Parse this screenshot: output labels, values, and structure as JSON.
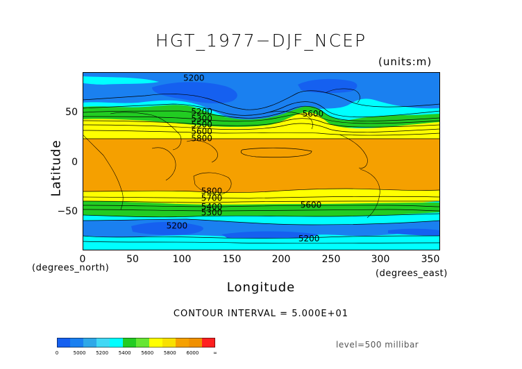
{
  "title": "HGT_1977−DJF_NCEP",
  "units": "(units:m)",
  "axes": {
    "ylabel": "Latitude",
    "xlabel": "Longitude",
    "y_ticks": [
      "50",
      "0",
      "−50"
    ],
    "x_ticks": [
      "0",
      "50",
      "100",
      "150",
      "200",
      "250",
      "300",
      "350"
    ],
    "x_unit": "(degrees_east)",
    "y_unit": "(degrees_north)"
  },
  "contour_interval": "CONTOUR INTERVAL = 5.000E+01",
  "level": "level=500 millibar",
  "colors": {
    "deep_blue": "#1a6ef0",
    "blue": "#2e9fe6",
    "cyan": "#00ffff",
    "green": "#22cc22",
    "yellow": "#ffff00",
    "orange": "#f5a000",
    "red": "#ff2020"
  },
  "chart_data": {
    "type": "heatmap",
    "title": "HGT_1977−DJF_NCEP",
    "xlabel": "Longitude",
    "ylabel": "Latitude",
    "xlim": [
      0,
      360
    ],
    "ylim": [
      -90,
      90
    ],
    "contour_labels": [
      {
        "value": "5200",
        "lon": 112,
        "lat": 84
      },
      {
        "value": "5200",
        "lon": 120,
        "lat": 50
      },
      {
        "value": "5300",
        "lon": 120,
        "lat": 43
      },
      {
        "value": "5500",
        "lon": 120,
        "lat": 37
      },
      {
        "value": "5600",
        "lon": 120,
        "lat": 30
      },
      {
        "value": "5800",
        "lon": 120,
        "lat": 23
      },
      {
        "value": "5600",
        "lon": 232,
        "lat": 48
      },
      {
        "value": "5800",
        "lon": 130,
        "lat": -30
      },
      {
        "value": "5700",
        "lon": 130,
        "lat": -37
      },
      {
        "value": "5600",
        "lon": 230,
        "lat": -44
      },
      {
        "value": "5400",
        "lon": 130,
        "lat": -46
      },
      {
        "value": "5300",
        "lon": 130,
        "lat": -52
      },
      {
        "value": "5200",
        "lon": 95,
        "lat": -65
      },
      {
        "value": "5200",
        "lon": 228,
        "lat": -78
      }
    ],
    "colorbar": {
      "labels": [
        "0",
        "5000",
        "5200",
        "5400",
        "5600",
        "5800",
        "6000",
        "∞"
      ],
      "colors": [
        "#1560f0",
        "#1a80f0",
        "#2ea8e8",
        "#40d8f5",
        "#00ffff",
        "#22cc22",
        "#66e633",
        "#ffff00",
        "#f8e000",
        "#f5a000",
        "#f09000",
        "#ff2020"
      ]
    }
  }
}
